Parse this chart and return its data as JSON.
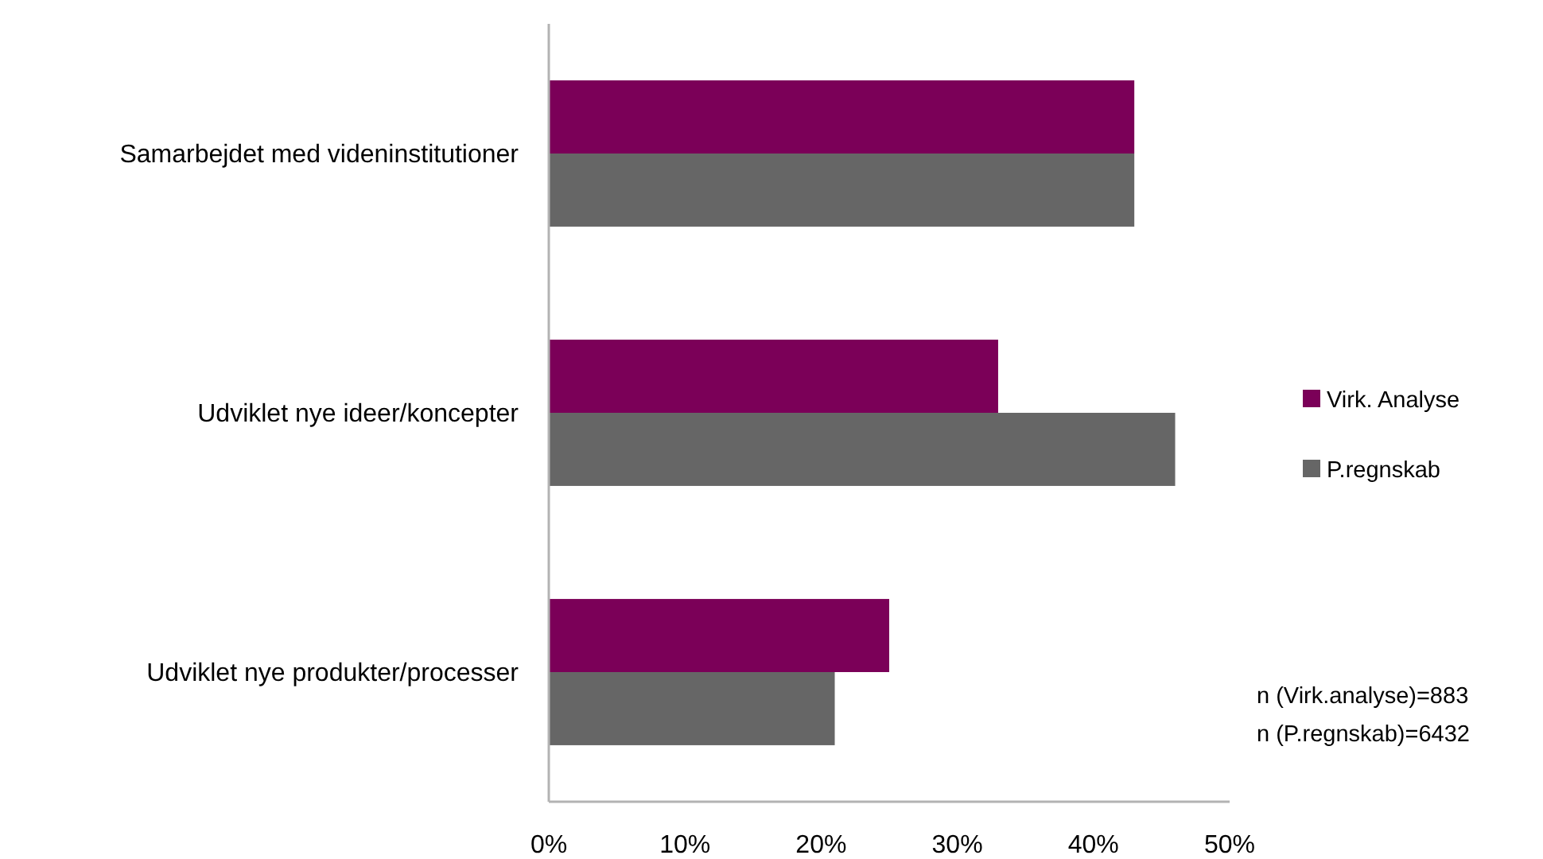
{
  "chart_data": {
    "type": "bar",
    "orientation": "horizontal",
    "categories": [
      "Samarbejdet med videninstitutioner",
      "Udviklet nye ideer/koncepter",
      "Udviklet nye produkter/processer"
    ],
    "series": [
      {
        "name": "Virk. Analyse",
        "color": "#7b0058",
        "values": [
          43,
          33,
          25
        ]
      },
      {
        "name": "P.regnskab",
        "color": "#666666",
        "values": [
          43,
          46,
          21
        ]
      }
    ],
    "xlim": [
      0,
      50
    ],
    "xticks": [
      {
        "value": 0,
        "label": "0%"
      },
      {
        "value": 10,
        "label": "10%"
      },
      {
        "value": 20,
        "label": "20%"
      },
      {
        "value": 30,
        "label": "30%"
      },
      {
        "value": 40,
        "label": "40%"
      },
      {
        "value": 50,
        "label": "50%"
      }
    ],
    "legend": "right",
    "annotations": [
      "n (Virk.analyse)=883",
      "n (P.regnskab)=6432"
    ]
  }
}
